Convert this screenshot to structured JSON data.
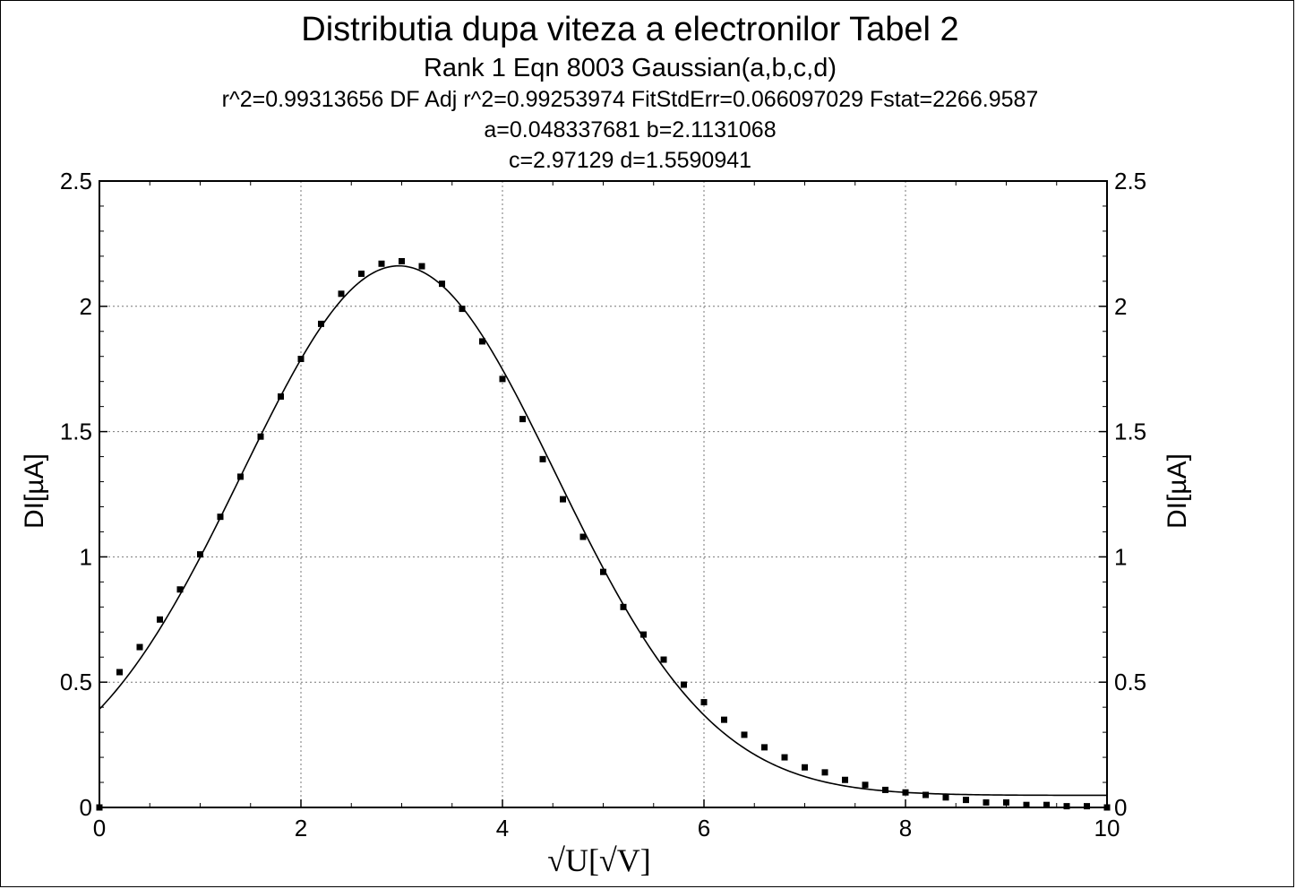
{
  "chart_data": {
    "type": "scatter",
    "title": "Distributia dupa viteza a electronilor   Tabel 2",
    "subtitle": "Rank 1  Eqn 8003  Gaussian(a,b,c,d)",
    "stats_line": "r^2=0.99313656  DF Adj r^2=0.99253974  FitStdErr=0.066097029  Fstat=2266.9587",
    "params_line1": "a=0.048337681 b=2.1131068",
    "params_line2": "c=2.97129 d=1.5590941",
    "xlabel": "√U[√V]",
    "ylabel": "DI[µA]",
    "ylabel_right": "DI[µA]",
    "xlim": [
      0,
      10
    ],
    "ylim": [
      0,
      2.5
    ],
    "x_ticks": [
      "0",
      "2",
      "4",
      "6",
      "8",
      "10"
    ],
    "y_ticks": [
      "0",
      "0.5",
      "1",
      "1.5",
      "2",
      "2.5"
    ],
    "grid": true,
    "fit": {
      "a": 0.048337681,
      "b": 2.1131068,
      "c": 2.97129,
      "d": 1.5590941
    },
    "points": {
      "x": [
        0,
        0.2,
        0.4,
        0.6,
        0.8,
        1.0,
        1.2,
        1.4,
        1.6,
        1.8,
        2.0,
        2.2,
        2.4,
        2.6,
        2.8,
        3.0,
        3.2,
        3.4,
        3.6,
        3.8,
        4.0,
        4.2,
        4.4,
        4.6,
        4.8,
        5.0,
        5.2,
        5.4,
        5.6,
        5.8,
        6.0,
        6.2,
        6.4,
        6.6,
        6.8,
        7.0,
        7.2,
        7.4,
        7.6,
        7.8,
        8.0,
        8.2,
        8.4,
        8.6,
        8.8,
        9.0,
        9.2,
        9.4,
        9.6,
        9.8,
        10.0
      ],
      "y": [
        0,
        0.54,
        0.64,
        0.75,
        0.87,
        1.01,
        1.16,
        1.32,
        1.48,
        1.64,
        1.79,
        1.93,
        2.05,
        2.13,
        2.17,
        2.18,
        2.16,
        2.09,
        1.99,
        1.86,
        1.71,
        1.55,
        1.39,
        1.23,
        1.08,
        0.94,
        0.8,
        0.69,
        0.59,
        0.49,
        0.42,
        0.35,
        0.29,
        0.24,
        0.2,
        0.16,
        0.14,
        0.11,
        0.09,
        0.07,
        0.06,
        0.05,
        0.04,
        0.03,
        0.02,
        0.02,
        0.01,
        0.01,
        0.005,
        0.005,
        0.0
      ]
    }
  }
}
